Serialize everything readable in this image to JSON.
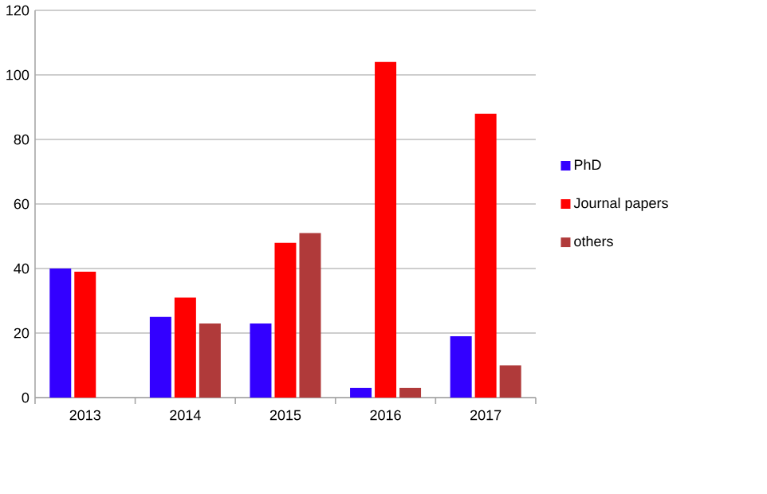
{
  "chart_data": {
    "type": "bar",
    "categories": [
      "2013",
      "2014",
      "2015",
      "2016",
      "2017"
    ],
    "series": [
      {
        "name": "PhD",
        "color": "#3300ff",
        "values": [
          40,
          25,
          23,
          3,
          19
        ]
      },
      {
        "name": "Journal papers",
        "color": "#ff0000",
        "values": [
          39,
          31,
          48,
          104,
          88
        ]
      },
      {
        "name": "others",
        "color": "#b03a3a",
        "values": [
          0,
          23,
          51,
          3,
          10
        ]
      }
    ],
    "ylim": [
      0,
      120
    ],
    "yticks": [
      0,
      20,
      40,
      60,
      80,
      100,
      120
    ],
    "grid": "y",
    "legend": "right"
  }
}
